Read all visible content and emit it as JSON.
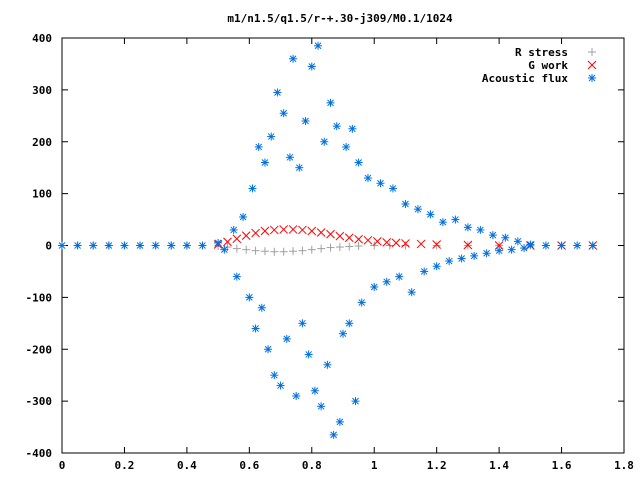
{
  "chart_data": {
    "type": "scatter",
    "title": "m1/n1.5/q1.5/r-+.30-j309/M0.1/1024",
    "xlabel": "",
    "ylabel": "",
    "xlim": [
      0,
      1.8
    ],
    "ylim": [
      -400,
      400
    ],
    "x_ticks": [
      "0",
      "0.2",
      "0.4",
      "0.6",
      "0.8",
      "1",
      "1.2",
      "1.4",
      "1.6",
      "1.8"
    ],
    "y_ticks": [
      "400",
      "300",
      "200",
      "100",
      "0",
      "-100",
      "-200",
      "-300",
      "-400"
    ],
    "legend_position": "top-right",
    "series": [
      {
        "name": "R stress",
        "marker": "+",
        "color": "#a0a0a0",
        "points": [
          [
            0.0,
            0
          ],
          [
            0.05,
            0
          ],
          [
            0.1,
            0
          ],
          [
            0.15,
            0
          ],
          [
            0.2,
            0
          ],
          [
            0.25,
            0
          ],
          [
            0.3,
            0
          ],
          [
            0.35,
            0
          ],
          [
            0.4,
            0
          ],
          [
            0.45,
            0
          ],
          [
            0.5,
            -1
          ],
          [
            0.53,
            -3
          ],
          [
            0.56,
            -6
          ],
          [
            0.59,
            -8
          ],
          [
            0.62,
            -10
          ],
          [
            0.65,
            -11
          ],
          [
            0.68,
            -12
          ],
          [
            0.71,
            -12
          ],
          [
            0.74,
            -11
          ],
          [
            0.77,
            -10
          ],
          [
            0.8,
            -8
          ],
          [
            0.83,
            -6
          ],
          [
            0.86,
            -4
          ],
          [
            0.89,
            -3
          ],
          [
            0.92,
            -2
          ],
          [
            0.95,
            -1
          ],
          [
            1.0,
            0
          ],
          [
            1.05,
            0
          ],
          [
            1.1,
            0
          ],
          [
            1.2,
            0
          ],
          [
            1.3,
            0
          ],
          [
            1.4,
            0
          ],
          [
            1.5,
            0
          ],
          [
            1.6,
            0
          ],
          [
            1.7,
            0
          ]
        ]
      },
      {
        "name": "G work",
        "marker": "x",
        "color": "#ff0000",
        "points": [
          [
            0.5,
            2
          ],
          [
            0.53,
            7
          ],
          [
            0.56,
            13
          ],
          [
            0.59,
            19
          ],
          [
            0.62,
            24
          ],
          [
            0.65,
            28
          ],
          [
            0.68,
            30
          ],
          [
            0.71,
            31
          ],
          [
            0.74,
            31
          ],
          [
            0.77,
            30
          ],
          [
            0.8,
            28
          ],
          [
            0.83,
            25
          ],
          [
            0.86,
            22
          ],
          [
            0.89,
            18
          ],
          [
            0.92,
            15
          ],
          [
            0.95,
            12
          ],
          [
            0.98,
            10
          ],
          [
            1.01,
            8
          ],
          [
            1.04,
            6
          ],
          [
            1.07,
            5
          ],
          [
            1.1,
            4
          ],
          [
            1.15,
            3
          ],
          [
            1.2,
            2
          ],
          [
            1.3,
            1
          ],
          [
            1.4,
            0
          ],
          [
            1.5,
            0
          ],
          [
            1.6,
            0
          ],
          [
            1.7,
            0
          ]
        ]
      },
      {
        "name": "Acoustic flux",
        "marker": "*",
        "color": "#0070e0",
        "points": [
          [
            0.0,
            0
          ],
          [
            0.05,
            0
          ],
          [
            0.1,
            0
          ],
          [
            0.15,
            0
          ],
          [
            0.2,
            0
          ],
          [
            0.25,
            0
          ],
          [
            0.3,
            0
          ],
          [
            0.35,
            0
          ],
          [
            0.4,
            0
          ],
          [
            0.45,
            0
          ],
          [
            0.5,
            5
          ],
          [
            0.52,
            -8
          ],
          [
            0.55,
            30
          ],
          [
            0.56,
            -60
          ],
          [
            0.58,
            55
          ],
          [
            0.6,
            -100
          ],
          [
            0.61,
            110
          ],
          [
            0.62,
            -160
          ],
          [
            0.63,
            190
          ],
          [
            0.64,
            -120
          ],
          [
            0.65,
            160
          ],
          [
            0.66,
            -200
          ],
          [
            0.67,
            210
          ],
          [
            0.68,
            -250
          ],
          [
            0.69,
            295
          ],
          [
            0.7,
            -270
          ],
          [
            0.71,
            255
          ],
          [
            0.72,
            -180
          ],
          [
            0.73,
            170
          ],
          [
            0.74,
            360
          ],
          [
            0.75,
            -290
          ],
          [
            0.76,
            150
          ],
          [
            0.77,
            -150
          ],
          [
            0.78,
            240
          ],
          [
            0.79,
            -210
          ],
          [
            0.8,
            345
          ],
          [
            0.81,
            -280
          ],
          [
            0.82,
            385
          ],
          [
            0.83,
            -310
          ],
          [
            0.84,
            200
          ],
          [
            0.85,
            -230
          ],
          [
            0.86,
            275
          ],
          [
            0.87,
            -365
          ],
          [
            0.88,
            230
          ],
          [
            0.89,
            -340
          ],
          [
            0.9,
            -170
          ],
          [
            0.91,
            190
          ],
          [
            0.92,
            -150
          ],
          [
            0.93,
            225
          ],
          [
            0.94,
            -300
          ],
          [
            0.95,
            160
          ],
          [
            0.96,
            -110
          ],
          [
            0.98,
            130
          ],
          [
            1.0,
            -80
          ],
          [
            1.02,
            120
          ],
          [
            1.04,
            -70
          ],
          [
            1.06,
            110
          ],
          [
            1.08,
            -60
          ],
          [
            1.1,
            80
          ],
          [
            1.12,
            -90
          ],
          [
            1.14,
            70
          ],
          [
            1.16,
            -50
          ],
          [
            1.18,
            60
          ],
          [
            1.2,
            -40
          ],
          [
            1.22,
            45
          ],
          [
            1.24,
            -30
          ],
          [
            1.26,
            50
          ],
          [
            1.28,
            -25
          ],
          [
            1.3,
            35
          ],
          [
            1.32,
            -20
          ],
          [
            1.34,
            30
          ],
          [
            1.36,
            -15
          ],
          [
            1.38,
            20
          ],
          [
            1.4,
            -10
          ],
          [
            1.42,
            15
          ],
          [
            1.44,
            -8
          ],
          [
            1.46,
            8
          ],
          [
            1.48,
            -5
          ],
          [
            1.5,
            2
          ],
          [
            1.55,
            0
          ],
          [
            1.6,
            0
          ],
          [
            1.65,
            0
          ],
          [
            1.7,
            0
          ]
        ]
      }
    ]
  }
}
